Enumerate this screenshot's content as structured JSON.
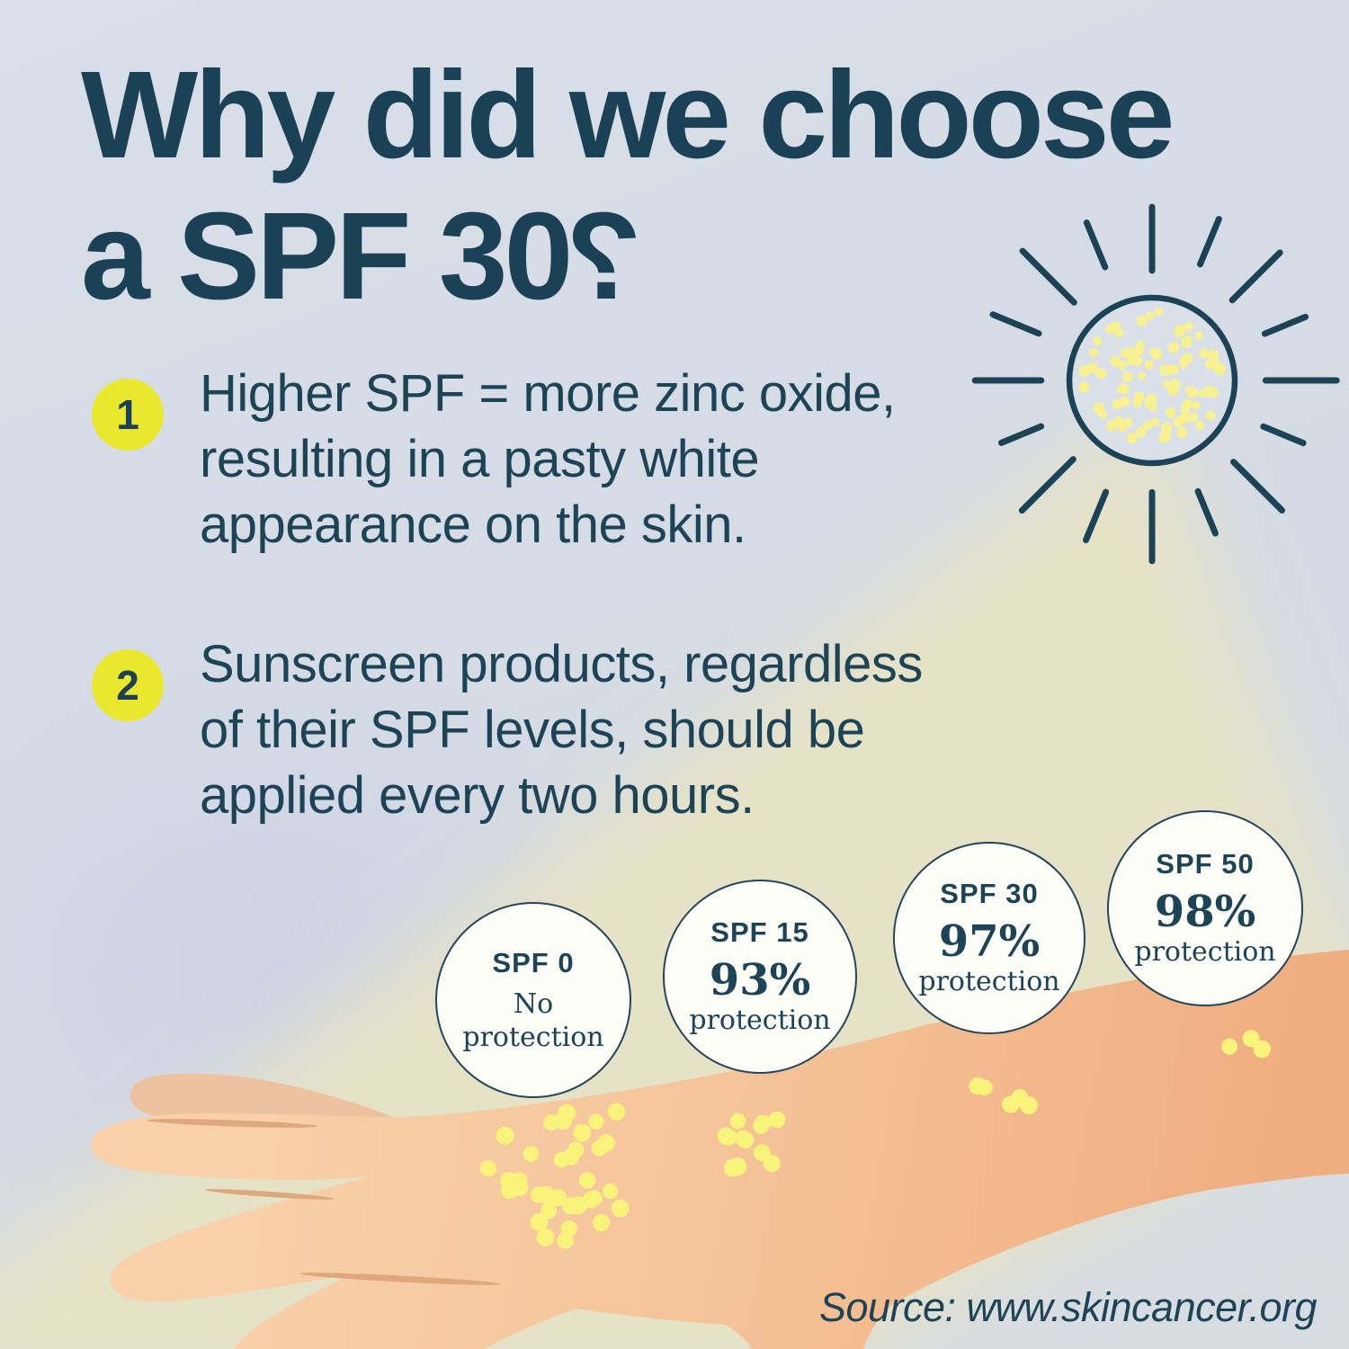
{
  "title": {
    "line1": "Why did we choose",
    "line2": "a SPF 30",
    "question_mark": "?"
  },
  "points": [
    {
      "number": "1",
      "lines": [
        "Higher SPF = more zinc oxide,",
        "resulting in a pasty white",
        "appearance on the skin."
      ]
    },
    {
      "number": "2",
      "lines": [
        "Sunscreen products, regardless",
        "of their SPF levels, should be",
        "applied every two hours."
      ]
    }
  ],
  "spf_levels": [
    {
      "label": "SPF 0",
      "percent": "",
      "protection": "No protection",
      "uv_dot_count": 34
    },
    {
      "label": "SPF 15",
      "percent": "93%",
      "protection": "protection",
      "uv_dot_count": 12
    },
    {
      "label": "SPF 30",
      "percent": "97%",
      "protection": "protection",
      "uv_dot_count": 5
    },
    {
      "label": "SPF 50",
      "percent": "98%",
      "protection": "protection",
      "uv_dot_count": 3
    }
  ],
  "sun": {
    "dot_count": 88,
    "ray_count": 16
  },
  "source": "Source: www.skincancer.org",
  "colors": {
    "navy": "#1c4156",
    "badge_yellow": "#eae72f",
    "background": "#d6dce4",
    "beam": "#e7e3c5",
    "skin_light": "#f8d0aa",
    "skin_dark": "#efae80",
    "crease": "#dca87c",
    "sun_dot": "#f7f192",
    "uv_dot": "#f9f27b",
    "circle_fill": "#fdfdf7",
    "circle_border": "#26455a"
  }
}
